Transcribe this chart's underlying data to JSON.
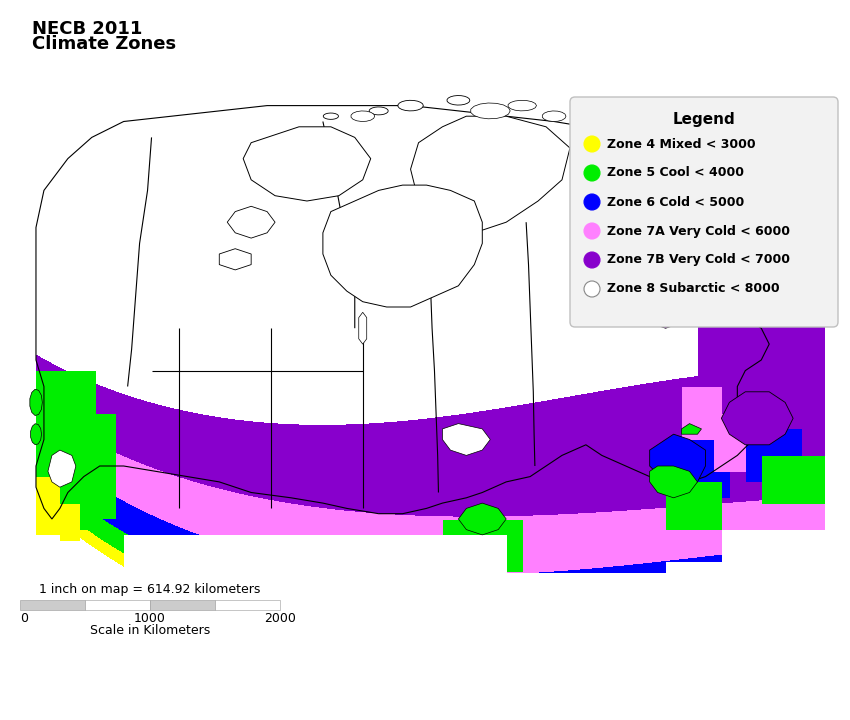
{
  "title_line1": "NECB 2011",
  "title_line2": "Climate Zones",
  "title_fontsize": 13,
  "legend_title": "Legend",
  "legend_entries": [
    {
      "label": "Zone 4 Mixed < 3000",
      "color": "#FFFF00"
    },
    {
      "label": "Zone 5 Cool < 4000",
      "color": "#00EE00"
    },
    {
      "label": "Zone 6 Cold < 5000",
      "color": "#0000FF"
    },
    {
      "label": "Zone 7A Very Cold < 6000",
      "color": "#FF80FF"
    },
    {
      "label": "Zone 7B Very Cold < 7000",
      "color": "#8800CC"
    },
    {
      "label": "Zone 8 Subarctic < 8000",
      "color": "#FFFFFF"
    }
  ],
  "scale_text": "1 inch on map = 614.92 kilometers",
  "scale_label": "Scale in Kilometers",
  "scale_ticks": [
    "0",
    "1000",
    "2000"
  ],
  "bg_color": "#FFFFFF",
  "zone4_color": "#FFFF00",
  "zone5_color": "#00EE00",
  "zone6_color": "#0000FF",
  "zone7a_color": "#FF80FF",
  "zone7b_color": "#8800CC",
  "zone8_color": "#FFFFFF",
  "outline_color": "#000000",
  "province_line_color": "#000000",
  "legend_box_color": "#F0F0F0",
  "scalebar_color": "#CCCCCC"
}
